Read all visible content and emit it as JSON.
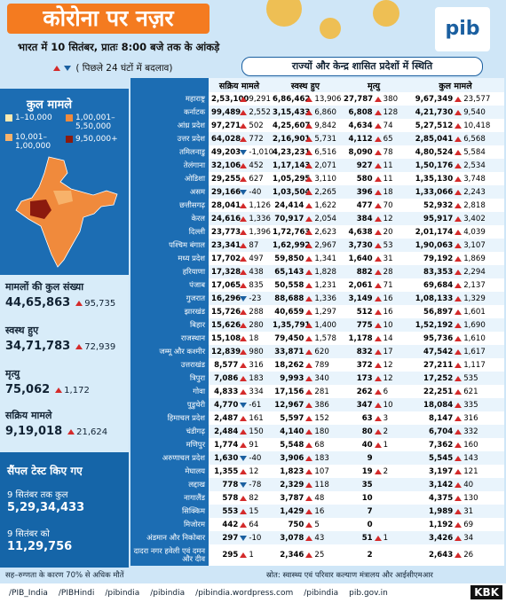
{
  "header": {
    "title": "कोरोना पर नज़र",
    "subtitle": "भारत में 10 सितंबर, प्रातः 8:00 बजे तक के आंकड़े",
    "change_note": "( पिछले 24 घंटों में बदलाव)",
    "table_title": "राज्यों और केन्द्र शासित प्रदेशों में स्थिति",
    "logo": "pib"
  },
  "legend": {
    "title": "कुल मामले",
    "items": [
      "1–10,000",
      "1,00,001–5,50,000",
      "10,001–1,00,000",
      "9,50,000+"
    ],
    "colors": [
      "#fde9b0",
      "#f08a3c",
      "#f7b26a",
      "#8b1a0e"
    ]
  },
  "summary": [
    {
      "label": "मामलों की कुल संख्या",
      "value": "44,65,863",
      "change": "95,735"
    },
    {
      "label": "स्वस्थ हुए",
      "value": "34,71,783",
      "change": "72,939"
    },
    {
      "label": "मृत्यु",
      "value": "75,062",
      "change": "1,172"
    },
    {
      "label": "सक्रिय मामले",
      "value": "9,19,018",
      "change": "21,624"
    }
  ],
  "tests": {
    "title": "सैंपल टेस्ट किए गए",
    "items": [
      {
        "label": "9 सितंबर तक कुल",
        "value": "5,29,34,433"
      },
      {
        "label": "9 सितंबर को",
        "value": "11,29,756"
      }
    ]
  },
  "table": {
    "columns": [
      "सक्रिय मामले",
      "स्वस्थ हुए",
      "मृत्यु",
      "कुल मामले"
    ],
    "rows": [
      [
        "महाराष्ट्र",
        "2,53,100",
        "9,291",
        "6,86,462",
        "13,906",
        "27,787",
        "380",
        "9,67,349",
        "23,577"
      ],
      [
        "कर्नाटक",
        "99,489",
        "2,552",
        "3,15,433",
        "6,860",
        "6,808",
        "128",
        "4,21,730",
        "9,540"
      ],
      [
        "आंध्र प्रदेश",
        "97,271",
        "502",
        "4,25,607",
        "9,842",
        "4,634",
        "74",
        "5,27,512",
        "10,418"
      ],
      [
        "उत्तर प्रदेश",
        "64,028",
        "772",
        "2,16,901",
        "5,731",
        "4,112",
        "65",
        "2,85,041",
        "6,568"
      ],
      [
        "तमिलनाडु",
        "49,203",
        "-1,010",
        "4,23,231",
        "6,516",
        "8,090",
        "78",
        "4,80,524",
        "5,584"
      ],
      [
        "तेलंगाना",
        "32,106",
        "452",
        "1,17,143",
        "2,071",
        "927",
        "11",
        "1,50,176",
        "2,534"
      ],
      [
        "ओडिशा",
        "29,255",
        "627",
        "1,05,295",
        "3,110",
        "580",
        "11",
        "1,35,130",
        "3,748"
      ],
      [
        "असम",
        "29,166",
        "-40",
        "1,03,504",
        "2,265",
        "396",
        "18",
        "1,33,066",
        "2,243"
      ],
      [
        "छत्तीसगढ़",
        "28,041",
        "1,126",
        "24,414",
        "1,622",
        "477",
        "70",
        "52,932",
        "2,818"
      ],
      [
        "केरल",
        "24,616",
        "1,336",
        "70,917",
        "2,054",
        "384",
        "12",
        "95,917",
        "3,402"
      ],
      [
        "दिल्ली",
        "23,773",
        "1,396",
        "1,72,763",
        "2,623",
        "4,638",
        "20",
        "2,01,174",
        "4,039"
      ],
      [
        "पश्चिम बंगाल",
        "23,341",
        "87",
        "1,62,992",
        "2,967",
        "3,730",
        "53",
        "1,90,063",
        "3,107"
      ],
      [
        "मध्य प्रदेश",
        "17,702",
        "497",
        "59,850",
        "1,341",
        "1,640",
        "31",
        "79,192",
        "1,869"
      ],
      [
        "हरियाणा",
        "17,328",
        "438",
        "65,143",
        "1,828",
        "882",
        "28",
        "83,353",
        "2,294"
      ],
      [
        "पंजाब",
        "17,065",
        "835",
        "50,558",
        "1,231",
        "2,061",
        "71",
        "69,684",
        "2,137"
      ],
      [
        "गुजरात",
        "16,296",
        "-23",
        "88,688",
        "1,336",
        "3,149",
        "16",
        "1,08,133",
        "1,329"
      ],
      [
        "झारखंड",
        "15,726",
        "288",
        "40,659",
        "1,297",
        "512",
        "16",
        "56,897",
        "1,601"
      ],
      [
        "बिहार",
        "15,626",
        "280",
        "1,35,791",
        "1,400",
        "775",
        "10",
        "1,52,192",
        "1,690"
      ],
      [
        "राजस्थान",
        "15,108",
        "18",
        "79,450",
        "1,578",
        "1,178",
        "14",
        "95,736",
        "1,610"
      ],
      [
        "जम्मू और कश्मीर",
        "12,839",
        "980",
        "33,871",
        "620",
        "832",
        "17",
        "47,542",
        "1,617"
      ],
      [
        "उत्तराखंड",
        "8,577",
        "316",
        "18,262",
        "789",
        "372",
        "12",
        "27,211",
        "1,117"
      ],
      [
        "त्रिपुरा",
        "7,086",
        "183",
        "9,993",
        "340",
        "173",
        "12",
        "17,252",
        "535"
      ],
      [
        "गोवा",
        "4,833",
        "334",
        "17,156",
        "281",
        "262",
        "6",
        "22,251",
        "621"
      ],
      [
        "पुडुचेरी",
        "4,770",
        "-61",
        "12,967",
        "386",
        "347",
        "10",
        "18,084",
        "335"
      ],
      [
        "हिमाचल प्रदेश",
        "2,487",
        "161",
        "5,597",
        "152",
        "63",
        "3",
        "8,147",
        "316"
      ],
      [
        "चंडीगढ़",
        "2,484",
        "150",
        "4,140",
        "180",
        "80",
        "2",
        "6,704",
        "332"
      ],
      [
        "मणिपुर",
        "1,774",
        "91",
        "5,548",
        "68",
        "40",
        "1",
        "7,362",
        "160"
      ],
      [
        "अरुणाचल प्रदेश",
        "1,630",
        "-40",
        "3,906",
        "183",
        "9",
        null,
        "5,545",
        "143"
      ],
      [
        "मेघालय",
        "1,355",
        "12",
        "1,823",
        "107",
        "19",
        "2",
        "3,197",
        "121"
      ],
      [
        "लद्दाख",
        "778",
        "-78",
        "2,329",
        "118",
        "35",
        null,
        "3,142",
        "40"
      ],
      [
        "नागालैंड",
        "578",
        "82",
        "3,787",
        "48",
        "10",
        null,
        "4,375",
        "130"
      ],
      [
        "सिक्किम",
        "553",
        "15",
        "1,429",
        "16",
        "7",
        null,
        "1,989",
        "31"
      ],
      [
        "मिजोरम",
        "442",
        "64",
        "750",
        "5",
        "0",
        null,
        "1,192",
        "69"
      ],
      [
        "अंडमान और निकोबार",
        "297",
        "-10",
        "3,078",
        "43",
        "51",
        "1",
        "3,426",
        "34"
      ],
      [
        "दादरा नगर हवेली एवं दमन और दीव",
        "295",
        "1",
        "2,346",
        "25",
        "2",
        null,
        "2,643",
        "26"
      ]
    ]
  },
  "footer": {
    "note": "सह–रुग्णता के कारण 70% से अधिक मौतें",
    "source": "स्रोत: स्वास्थ्य एवं परिवार कल्याण मंत्रालय और आईसीएमआर",
    "links": [
      "/PIB_India",
      "/PIBHindi",
      "/pibindia",
      "/pibindia",
      "/pibindia.wordpress.com",
      "/pibindia",
      "pib.gov.in"
    ],
    "brand": "KBK"
  }
}
